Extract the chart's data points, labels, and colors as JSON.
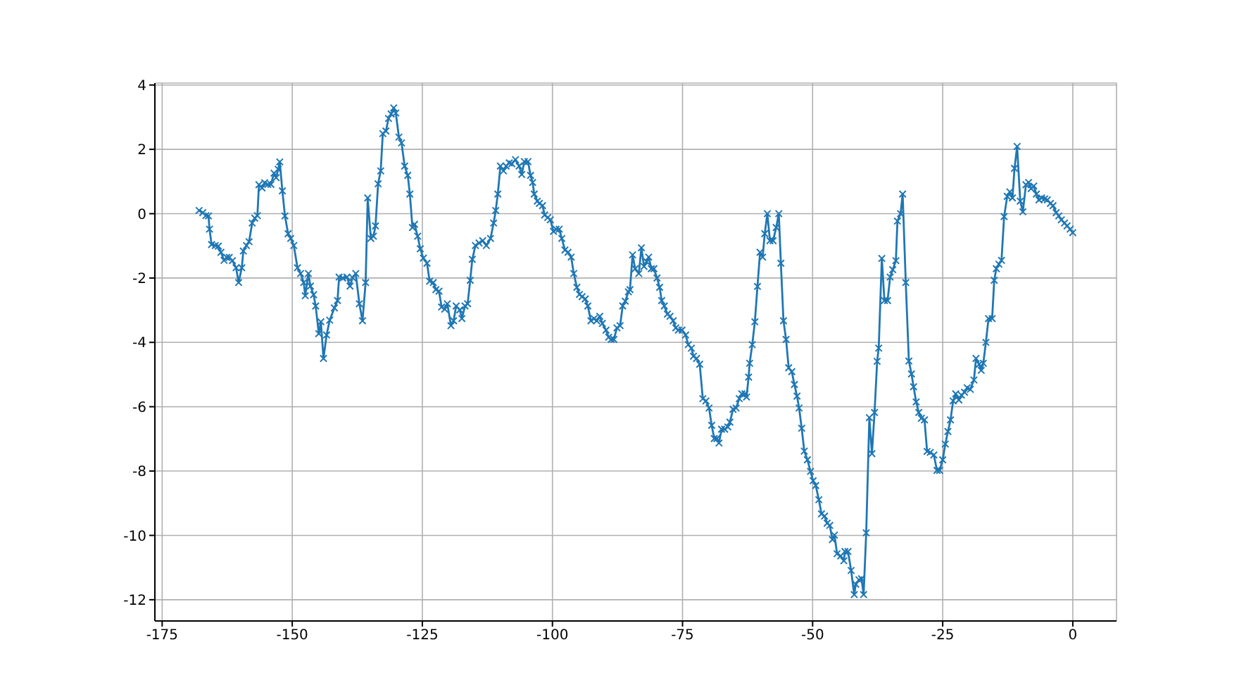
{
  "chart_data": {
    "type": "line",
    "x": [
      -167.9,
      -167.2,
      -166.6,
      -166.1,
      -165.9,
      -165.5,
      -164.8,
      -164.2,
      -163.7,
      -163.1,
      -162.6,
      -162.1,
      -161.5,
      -160.8,
      -160.3,
      -159.7,
      -159.4,
      -158.8,
      -158.3,
      -157.7,
      -157.2,
      -156.7,
      -156.4,
      -155.8,
      -155.3,
      -154.7,
      -154.1,
      -153.5,
      -153.1,
      -152.7,
      -152.4,
      -151.9,
      -151.4,
      -150.8,
      -150.3,
      -149.7,
      -149.0,
      -148.4,
      -147.8,
      -147.5,
      -146.9,
      -146.5,
      -145.9,
      -145.5,
      -144.9,
      -144.5,
      -144.0,
      -143.4,
      -142.8,
      -141.9,
      -141.3,
      -141.0,
      -140.3,
      -139.5,
      -138.9,
      -138.4,
      -137.8,
      -137.1,
      -136.5,
      -135.9,
      -135.5,
      -134.9,
      -134.4,
      -134.0,
      -133.5,
      -133.0,
      -132.6,
      -132.0,
      -131.5,
      -131.0,
      -130.5,
      -130.1,
      -129.5,
      -129.0,
      -128.4,
      -127.8,
      -127.4,
      -126.9,
      -126.5,
      -125.9,
      -125.4,
      -124.8,
      -124.1,
      -123.6,
      -122.9,
      -122.4,
      -121.8,
      -121.3,
      -120.7,
      -120.2,
      -119.5,
      -119.0,
      -118.5,
      -117.8,
      -117.4,
      -116.8,
      -116.3,
      -115.8,
      -115.4,
      -114.8,
      -114.1,
      -113.4,
      -112.7,
      -111.9,
      -111.3,
      -110.9,
      -110.5,
      -110.0,
      -109.4,
      -108.9,
      -108.3,
      -107.8,
      -107.1,
      -106.4,
      -105.9,
      -105.4,
      -104.7,
      -104.2,
      -103.8,
      -103.5,
      -102.9,
      -102.5,
      -101.9,
      -101.5,
      -100.9,
      -100.4,
      -99.8,
      -99.3,
      -98.7,
      -98.2,
      -97.6,
      -97.0,
      -96.4,
      -95.9,
      -95.3,
      -94.8,
      -94.3,
      -93.7,
      -93.2,
      -92.6,
      -92.0,
      -91.5,
      -90.9,
      -90.4,
      -89.7,
      -89.2,
      -88.7,
      -88.2,
      -87.6,
      -87.0,
      -86.5,
      -86.0,
      -85.4,
      -85.1,
      -84.6,
      -84.1,
      -83.4,
      -82.9,
      -82.4,
      -81.9,
      -81.5,
      -81.0,
      -80.5,
      -79.9,
      -79.4,
      -79.0,
      -78.5,
      -77.9,
      -77.4,
      -76.8,
      -76.3,
      -75.8,
      -75.1,
      -74.4,
      -73.9,
      -73.3,
      -72.9,
      -72.3,
      -71.7,
      -71.1,
      -70.5,
      -69.9,
      -69.4,
      -68.9,
      -68.4,
      -68.0,
      -67.5,
      -66.9,
      -66.3,
      -65.9,
      -65.3,
      -64.7,
      -64.1,
      -63.6,
      -63.0,
      -62.7,
      -62.3,
      -62.1,
      -61.6,
      -61.1,
      -60.6,
      -60.1,
      -59.6,
      -59.2,
      -58.7,
      -58.2,
      -57.6,
      -57.0,
      -56.5,
      -56.1,
      -55.6,
      -55.1,
      -54.6,
      -54.0,
      -53.5,
      -53.0,
      -52.6,
      -52.1,
      -51.6,
      -51.0,
      -50.4,
      -49.9,
      -49.4,
      -48.8,
      -48.3,
      -47.7,
      -47.2,
      -46.7,
      -46.2,
      -45.8,
      -45.3,
      -44.6,
      -44.0,
      -43.8,
      -43.2,
      -42.6,
      -42.0,
      -41.7,
      -41.1,
      -40.6,
      -40.2,
      -39.7,
      -39.1,
      -38.6,
      -38.1,
      -37.6,
      -37.3,
      -36.7,
      -36.2,
      -35.6,
      -35.1,
      -34.6,
      -34.0,
      -33.7,
      -33.1,
      -32.7,
      -32.1,
      -31.5,
      -31.0,
      -30.6,
      -30.1,
      -29.6,
      -29.1,
      -28.5,
      -28.0,
      -27.4,
      -26.7,
      -26.1,
      -25.6,
      -25.0,
      -24.5,
      -24.0,
      -23.5,
      -23.0,
      -22.5,
      -21.9,
      -21.4,
      -20.8,
      -20.3,
      -19.7,
      -19.0,
      -18.6,
      -18.0,
      -17.6,
      -17.2,
      -16.7,
      -16.2,
      -15.5,
      -15.1,
      -14.7,
      -14.2,
      -13.7,
      -13.2,
      -12.6,
      -12.1,
      -11.6,
      -11.2,
      -10.7,
      -10.1,
      -9.6,
      -9.0,
      -8.5,
      -8.0,
      -7.5,
      -7.0,
      -6.5,
      -6.0,
      -5.4,
      -4.9,
      -4.3,
      -3.8,
      -3.2,
      -2.7,
      -2.2,
      -1.6,
      -1.1,
      -0.5,
      0
    ],
    "series": [
      {
        "color": "#1f77b4",
        "values": [
          0.1,
          0.03,
          -0.06,
          -0.07,
          -0.48,
          -0.96,
          -0.99,
          -1.01,
          -1.2,
          -1.45,
          -1.36,
          -1.36,
          -1.46,
          -1.68,
          -2.14,
          -1.68,
          -1.16,
          -0.99,
          -0.87,
          -0.29,
          -0.14,
          -0.06,
          0.9,
          0.8,
          0.96,
          0.91,
          0.91,
          1.26,
          1.12,
          1.38,
          1.61,
          0.71,
          -0.07,
          -0.62,
          -0.77,
          -0.99,
          -1.68,
          -1.86,
          -2.14,
          -2.55,
          -1.86,
          -2.25,
          -2.52,
          -2.87,
          -3.73,
          -3.36,
          -4.5,
          -3.77,
          -3.31,
          -2.93,
          -2.7,
          -1.97,
          -2.0,
          -1.97,
          -2.25,
          -1.99,
          -1.86,
          -2.8,
          -3.33,
          -2.14,
          0.49,
          -0.77,
          -0.7,
          -0.38,
          0.93,
          1.33,
          2.49,
          2.57,
          2.96,
          3.1,
          3.29,
          3.13,
          2.38,
          2.2,
          1.48,
          1.19,
          0.61,
          -0.43,
          -0.33,
          -0.7,
          -1.09,
          -1.38,
          -1.54,
          -2.1,
          -2.14,
          -2.36,
          -2.41,
          -2.9,
          -2.97,
          -2.8,
          -3.48,
          -3.33,
          -2.87,
          -2.99,
          -3.26,
          -2.87,
          -2.8,
          -2.07,
          -1.42,
          -0.99,
          -0.91,
          -0.84,
          -0.99,
          -0.77,
          -0.29,
          0.1,
          0.61,
          1.48,
          1.33,
          1.48,
          1.58,
          1.55,
          1.68,
          1.48,
          1.22,
          1.62,
          1.62,
          1.19,
          0.97,
          0.61,
          0.39,
          0.32,
          0.25,
          -0.04,
          -0.12,
          -0.19,
          -0.55,
          -0.48,
          -0.48,
          -0.77,
          -1.13,
          -1.2,
          -1.35,
          -1.86,
          -2.29,
          -2.51,
          -2.58,
          -2.65,
          -2.87,
          -3.33,
          -3.26,
          -3.33,
          -3.19,
          -3.41,
          -3.62,
          -3.84,
          -3.91,
          -3.91,
          -3.55,
          -3.48,
          -2.87,
          -2.72,
          -2.43,
          -2.36,
          -1.28,
          -1.71,
          -1.86,
          -1.06,
          -1.64,
          -1.49,
          -1.35,
          -1.71,
          -1.71,
          -2.0,
          -2.29,
          -2.7,
          -2.87,
          -3.12,
          -3.19,
          -3.33,
          -3.55,
          -3.62,
          -3.62,
          -3.77,
          -4.07,
          -4.18,
          -4.43,
          -4.5,
          -4.68,
          -5.75,
          -5.82,
          -6.04,
          -6.58,
          -6.99,
          -6.99,
          -7.13,
          -6.7,
          -6.7,
          -6.63,
          -6.48,
          -6.08,
          -6.04,
          -5.75,
          -5.6,
          -5.6,
          -5.7,
          -5.08,
          -4.65,
          -4.07,
          -3.36,
          -2.26,
          -1.2,
          -1.35,
          -0.62,
          0.0,
          -0.84,
          -0.84,
          -0.43,
          0.0,
          -1.54,
          -3.33,
          -3.91,
          -4.79,
          -4.91,
          -5.31,
          -5.67,
          -6.04,
          -6.67,
          -7.38,
          -7.65,
          -8.01,
          -8.3,
          -8.45,
          -8.89,
          -9.33,
          -9.4,
          -9.62,
          -9.69,
          -10.13,
          -9.99,
          -10.57,
          -10.64,
          -10.79,
          -10.5,
          -10.5,
          -11.09,
          -11.84,
          -11.52,
          -11.38,
          -11.35,
          -11.84,
          -9.92,
          -6.34,
          -7.46,
          -6.18,
          -4.59,
          -4.18,
          -1.39,
          -2.7,
          -2.7,
          -1.97,
          -1.74,
          -1.46,
          -0.23,
          0.0,
          0.61,
          -2.14,
          -4.58,
          -4.98,
          -5.38,
          -5.85,
          -6.18,
          -6.36,
          -6.41,
          -7.39,
          -7.42,
          -7.5,
          -7.98,
          -7.98,
          -7.65,
          -7.16,
          -6.77,
          -6.41,
          -5.82,
          -5.6,
          -5.79,
          -5.64,
          -5.55,
          -5.41,
          -5.46,
          -5.17,
          -4.5,
          -4.68,
          -4.87,
          -4.65,
          -4.0,
          -3.26,
          -3.26,
          -2.07,
          -1.71,
          -1.57,
          -1.45,
          -0.09,
          0.54,
          0.68,
          0.49,
          1.41,
          2.09,
          0.39,
          0.06,
          0.9,
          0.97,
          0.78,
          0.86,
          0.61,
          0.43,
          0.49,
          0.46,
          0.43,
          0.32,
          0.25,
          0.03,
          -0.07,
          -0.19,
          -0.29,
          -0.38,
          -0.48,
          -0.59
        ]
      }
    ],
    "xlim": [
      -176.4,
      8.4
    ],
    "xticks": [
      -175,
      -150,
      -125,
      -100,
      -75,
      -50,
      -25,
      0
    ],
    "ylim": [
      -12.66,
      4.06
    ],
    "yticks": [
      -12,
      -10,
      -8,
      -6,
      -4,
      -2,
      0,
      2,
      4
    ],
    "grid": true,
    "marker": "cross",
    "line_style": "solid"
  }
}
